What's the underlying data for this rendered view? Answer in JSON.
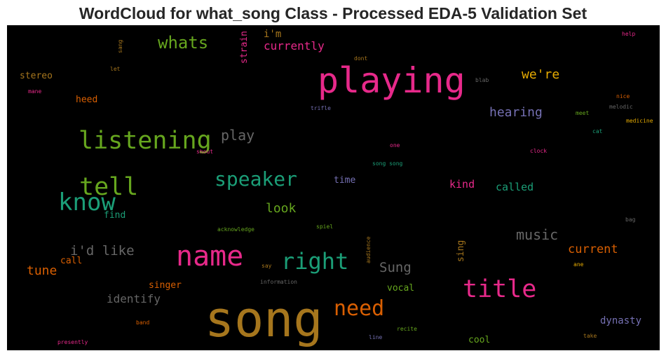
{
  "chart_data": {
    "type": "wordcloud",
    "title": "WordCloud for what_song Class - Processed EDA-5 Validation Set",
    "background": "#000000",
    "words": [
      {
        "text": "song",
        "color": "#a6761d",
        "weight": 70
      },
      {
        "text": "playing",
        "color": "#e7298a",
        "weight": 50
      },
      {
        "text": "name",
        "color": "#e7298a",
        "weight": 40
      },
      {
        "text": "title",
        "color": "#e7298a",
        "weight": 35
      },
      {
        "text": "listening",
        "color": "#66a61e",
        "weight": 35
      },
      {
        "text": "tell",
        "color": "#66a61e",
        "weight": 35
      },
      {
        "text": "know",
        "color": "#1b9e77",
        "weight": 34
      },
      {
        "text": "right",
        "color": "#1b9e77",
        "weight": 32
      },
      {
        "text": "need",
        "color": "#d95f02",
        "weight": 30
      },
      {
        "text": "speaker",
        "color": "#1b9e77",
        "weight": 28
      },
      {
        "text": "whats",
        "color": "#66a61e",
        "weight": 24
      },
      {
        "text": "play",
        "color": "#666666",
        "weight": 20
      },
      {
        "text": "music",
        "color": "#666666",
        "weight": 20
      },
      {
        "text": "Sung",
        "color": "#666666",
        "weight": 19
      },
      {
        "text": "i'd like",
        "color": "#666666",
        "weight": 19
      },
      {
        "text": "we're",
        "color": "#e6ab02",
        "weight": 18
      },
      {
        "text": "hearing",
        "color": "#7570b3",
        "weight": 18
      },
      {
        "text": "tune",
        "color": "#d95f02",
        "weight": 18
      },
      {
        "text": "look",
        "color": "#66a61e",
        "weight": 18
      },
      {
        "text": "current",
        "color": "#d95f02",
        "weight": 17
      },
      {
        "text": "currently",
        "color": "#e7298a",
        "weight": 16
      },
      {
        "text": "identify",
        "color": "#666666",
        "weight": 16
      },
      {
        "text": "called",
        "color": "#1b9e77",
        "weight": 15
      },
      {
        "text": "kind",
        "color": "#e7298a",
        "weight": 15
      },
      {
        "text": "dynasty",
        "color": "#7570b3",
        "weight": 14
      },
      {
        "text": "i'm",
        "color": "#a6761d",
        "weight": 14
      },
      {
        "text": "heed",
        "color": "#d95f02",
        "weight": 13
      },
      {
        "text": "stereo",
        "color": "#a6761d",
        "weight": 13
      },
      {
        "text": "sing",
        "color": "#a6761d",
        "weight": 13
      },
      {
        "text": "strain",
        "color": "#e7298a",
        "weight": 13
      },
      {
        "text": "singer",
        "color": "#d95f02",
        "weight": 13
      },
      {
        "text": "cool",
        "color": "#66a61e",
        "weight": 13
      },
      {
        "text": "time",
        "color": "#7570b3",
        "weight": 13
      },
      {
        "text": "find",
        "color": "#1b9e77",
        "weight": 13
      },
      {
        "text": "call",
        "color": "#d95f02",
        "weight": 13
      },
      {
        "text": "vocal",
        "color": "#66a61e",
        "weight": 13
      },
      {
        "text": "sang",
        "color": "#a6761d",
        "weight": 8
      },
      {
        "text": "dont",
        "color": "#a6761d",
        "weight": 8
      },
      {
        "text": "let",
        "color": "#a6761d",
        "weight": 8
      },
      {
        "text": "mane",
        "color": "#e7298a",
        "weight": 8
      },
      {
        "text": "blab",
        "color": "#666666",
        "weight": 8
      },
      {
        "text": "trifle",
        "color": "#7570b3",
        "weight": 8
      },
      {
        "text": "shout",
        "color": "#e7298a",
        "weight": 8
      },
      {
        "text": "one",
        "color": "#e7298a",
        "weight": 8
      },
      {
        "text": "song song",
        "color": "#1b9e77",
        "weight": 8
      },
      {
        "text": "acknowledge",
        "color": "#66a61e",
        "weight": 8
      },
      {
        "text": "spiel",
        "color": "#66a61e",
        "weight": 8
      },
      {
        "text": "audience",
        "color": "#a6761d",
        "weight": 8
      },
      {
        "text": "say",
        "color": "#a6761d",
        "weight": 8
      },
      {
        "text": "information",
        "color": "#666666",
        "weight": 8
      },
      {
        "text": "band",
        "color": "#d95f02",
        "weight": 8
      },
      {
        "text": "presently",
        "color": "#e7298a",
        "weight": 8
      },
      {
        "text": "line",
        "color": "#7570b3",
        "weight": 8
      },
      {
        "text": "recite",
        "color": "#66a61e",
        "weight": 8
      },
      {
        "text": "help",
        "color": "#e7298a",
        "weight": 8
      },
      {
        "text": "nice",
        "color": "#d95f02",
        "weight": 8
      },
      {
        "text": "melodic",
        "color": "#666666",
        "weight": 8
      },
      {
        "text": "meet",
        "color": "#66a61e",
        "weight": 8
      },
      {
        "text": "medicine",
        "color": "#e6ab02",
        "weight": 8
      },
      {
        "text": "cat",
        "color": "#1b9e77",
        "weight": 8
      },
      {
        "text": "clock",
        "color": "#e7298a",
        "weight": 8
      },
      {
        "text": "bag",
        "color": "#666666",
        "weight": 8
      },
      {
        "text": "ane",
        "color": "#e6ab02",
        "weight": 8
      },
      {
        "text": "take",
        "color": "#a6761d",
        "weight": 8
      }
    ]
  }
}
